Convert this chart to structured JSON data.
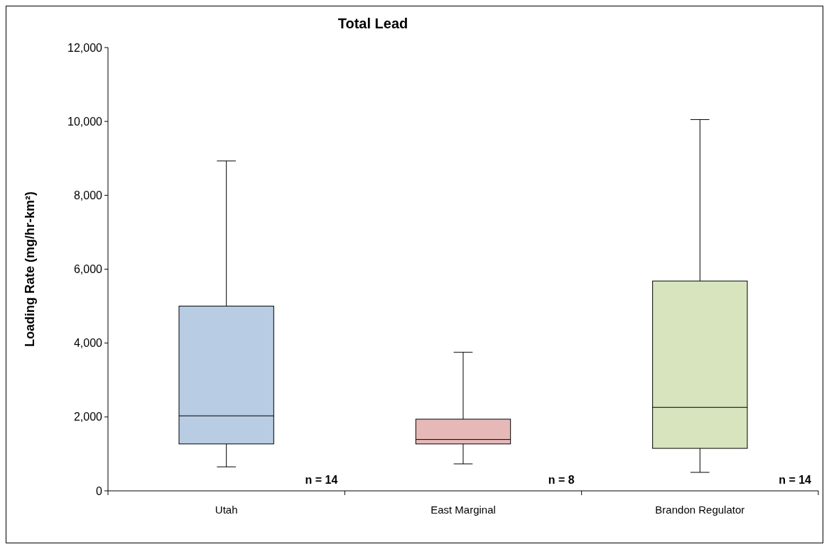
{
  "chart_data": {
    "type": "box",
    "title": "Total Lead",
    "ylabel": "Loading Rate (mg/hr-km²)",
    "categories": [
      "Utah",
      "East Marginal",
      "Brandon Regulator"
    ],
    "colors": [
      "#b8cce4",
      "#e6b9b8",
      "#d7e4bd"
    ],
    "boxes": [
      {
        "low": 650,
        "q1": 1270,
        "median": 2030,
        "q3": 5000,
        "high": 8930
      },
      {
        "low": 730,
        "q1": 1270,
        "median": 1390,
        "q3": 1940,
        "high": 3750
      },
      {
        "low": 500,
        "q1": 1150,
        "median": 2260,
        "q3": 5680,
        "high": 10050
      }
    ],
    "ylim": [
      0,
      12000
    ],
    "yticks": [
      {
        "value": 0,
        "label": "0"
      },
      {
        "value": 2000,
        "label": "2,000"
      },
      {
        "value": 4000,
        "label": "4,000"
      },
      {
        "value": 6000,
        "label": "6,000"
      },
      {
        "value": 8000,
        "label": "8,000"
      },
      {
        "value": 10000,
        "label": "10,000"
      },
      {
        "value": 12000,
        "label": "12,000"
      }
    ],
    "grid": false,
    "annotations": [
      "n = 14",
      "n = 8",
      "n = 14"
    ]
  }
}
